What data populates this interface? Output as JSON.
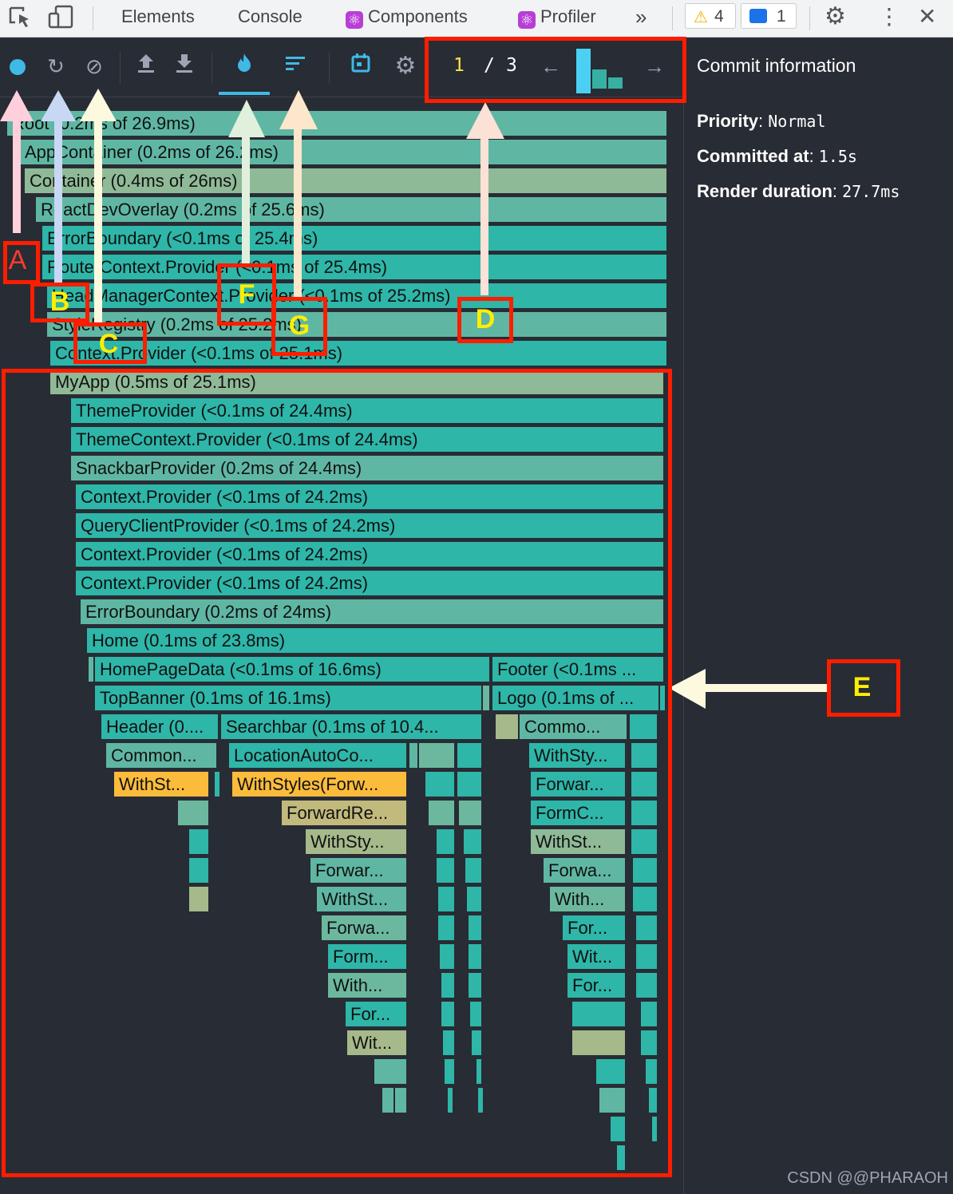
{
  "devtools": {
    "tabs": [
      {
        "label": "Elements"
      },
      {
        "label": "Console"
      },
      {
        "label": "Components"
      },
      {
        "label": "Profiler"
      }
    ],
    "warnings_count": "4",
    "messages_count": "1"
  },
  "profiler": {
    "commit_index": "1",
    "commit_separator": "/",
    "commit_total": "3"
  },
  "commit_info": {
    "title": "Commit information",
    "priority_label": "Priority",
    "priority_value": "Normal",
    "committed_label": "Committed at",
    "committed_value": "1.5s",
    "duration_label": "Render duration",
    "duration_value": "27.7ms"
  },
  "flamegraph": [
    "Root (0.2ms of 26.9ms)",
    "AppContainer (0.2ms of 26.2ms)",
    "Container (0.4ms of 26ms)",
    "ReactDevOverlay (0.2ms of 25.6ms)",
    "ErrorBoundary (<0.1ms of 25.4ms)",
    "RouterContext.Provider (<0.1ms of 25.4ms)",
    "HeadManagerContext.Provider (<0.1ms of 25.2ms)",
    "StyleRegistry (0.2ms of 25.2ms)",
    "Context.Provider (<0.1ms of 25.1ms)",
    "MyApp (0.5ms of 25.1ms)",
    "ThemeProvider (<0.1ms of 24.4ms)",
    "ThemeContext.Provider (<0.1ms of 24.4ms)",
    "SnackbarProvider (0.2ms of 24.4ms)",
    "Context.Provider (<0.1ms of 24.2ms)",
    "QueryClientProvider (<0.1ms of 24.2ms)",
    "Context.Provider (<0.1ms of 24.2ms)",
    "Context.Provider (<0.1ms of 24.2ms)",
    "ErrorBoundary (0.2ms of 24ms)",
    "Home (0.1ms of 23.8ms)",
    "HomePageData (<0.1ms of 16.6ms)",
    "Footer (<0.1ms ...",
    "TopBanner (0.1ms of 16.1ms)",
    "Logo (0.1ms of ...",
    "Header (0....",
    "Searchbar (0.1ms of 10.4...",
    "Commo...",
    "Common...",
    "LocationAutoCo...",
    "WithSty...",
    "WithSt...",
    "WithStyles(Forw...",
    "Forwar...",
    "ForwardRe...",
    "FormC...",
    "WithSty...",
    "WithSt...",
    "Forwar...",
    "Forwa...",
    "WithSt...",
    "With...",
    "Forwa...",
    "For...",
    "Form...",
    "Wit...",
    "With...",
    "For...",
    "For...",
    "Wit..."
  ],
  "annotations": [
    "A",
    "B",
    "C",
    "D",
    "E",
    "F",
    "G"
  ],
  "watermark": "CSDN @@PHARAOH"
}
